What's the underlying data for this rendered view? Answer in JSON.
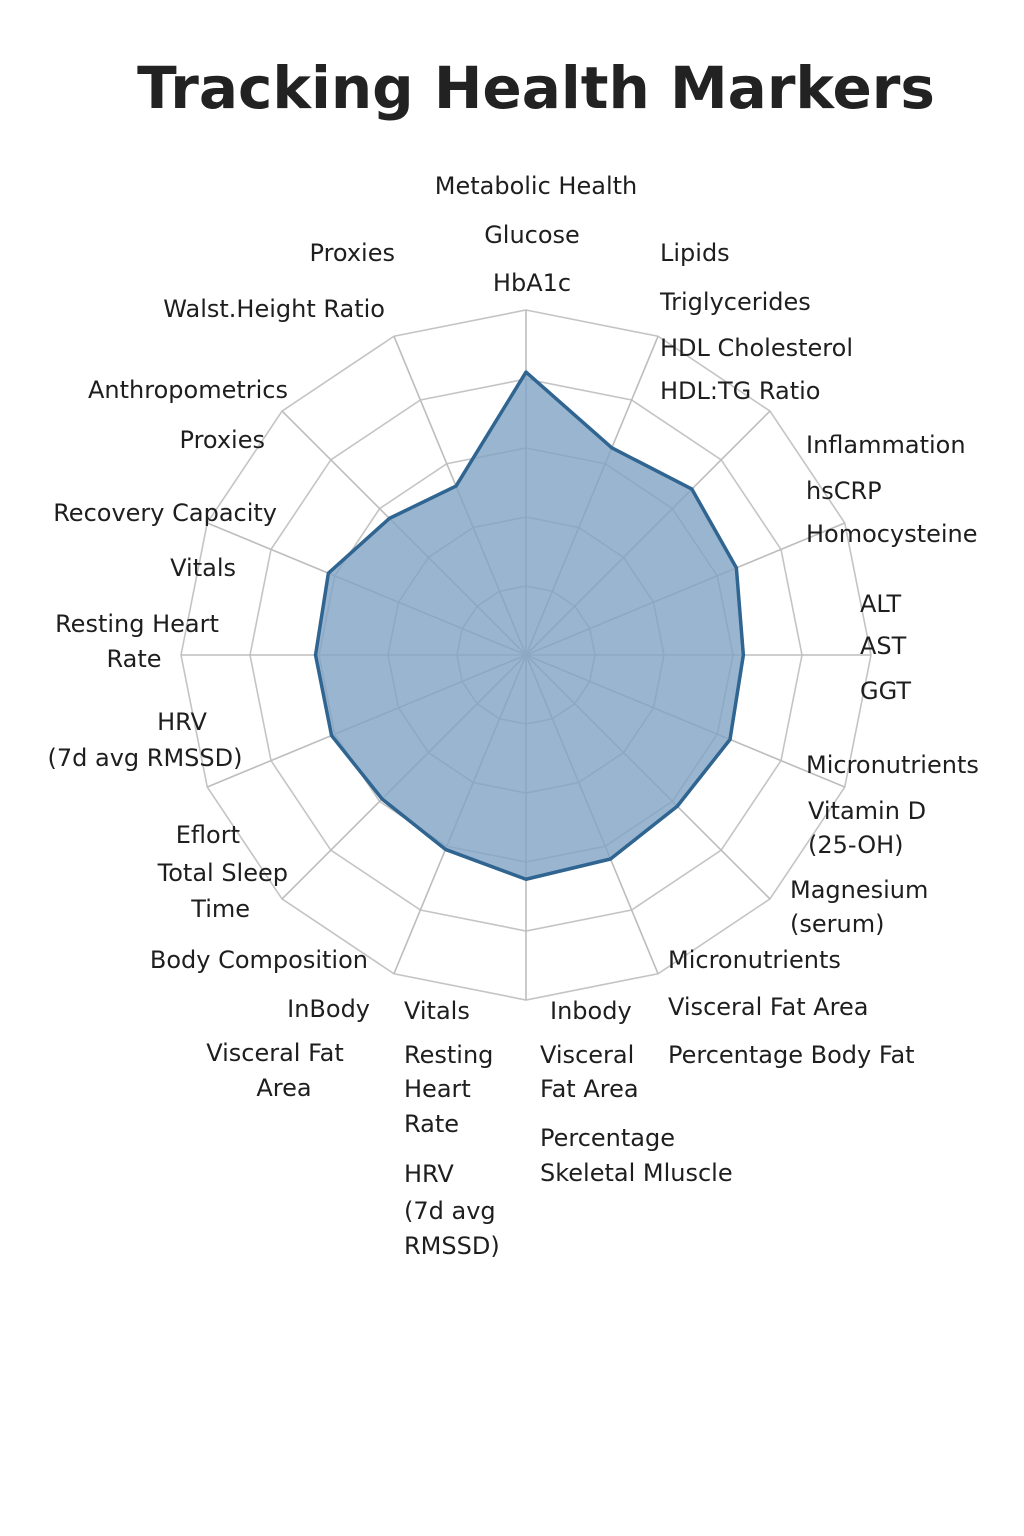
{
  "chart_data": {
    "type": "radar",
    "title": "Tracking Health Markers",
    "categories": [
      null,
      null,
      null,
      null,
      null,
      null,
      null,
      null,
      null,
      null,
      null,
      null,
      null,
      null,
      null,
      null
    ],
    "values": [
      82,
      65,
      68,
      66,
      63,
      64,
      62,
      64,
      65,
      61,
      59,
      61,
      61,
      62,
      56,
      53
    ],
    "color": "#2f6590",
    "ylim": [
      0,
      100
    ],
    "yticks": [
      0,
      20,
      40,
      60,
      80,
      100
    ],
    "grid": true,
    "annotations": [
      "Metabolic Health",
      "Glucose",
      "HbA1c",
      "Lipids",
      "Triglycerides",
      "HDL Cholesterol",
      "HDL:TG Ratio",
      "Inflammation",
      "hsCRP",
      "Homocysteine",
      "ALT",
      "AST",
      "GGT",
      "Micronutrients",
      "Vitamin D",
      "(25-OH)",
      "Magnesium",
      "(serum)",
      "Micronutrients",
      "Visceral Fat Area",
      "Percentage Body Fat",
      "Inbody",
      "Visceral",
      "Fat Area",
      "Percentage",
      "Skeletal Mluscle",
      "Vitals",
      "Resting",
      "Heart",
      "Rate",
      "HRV",
      "(7d avg",
      "RMSSD)",
      "InBody",
      "Visceral Fat",
      "Area",
      "Body Composition",
      "Eflort",
      "Total Sleep",
      "Time",
      "HRV",
      "(7d avg RMSSD)",
      "Resting Heart",
      "Rate",
      "Vitals",
      "Recovery Capacity",
      "Proxies",
      "Anthropometrics",
      "Walst.Height Ratio",
      "Proxies"
    ]
  }
}
